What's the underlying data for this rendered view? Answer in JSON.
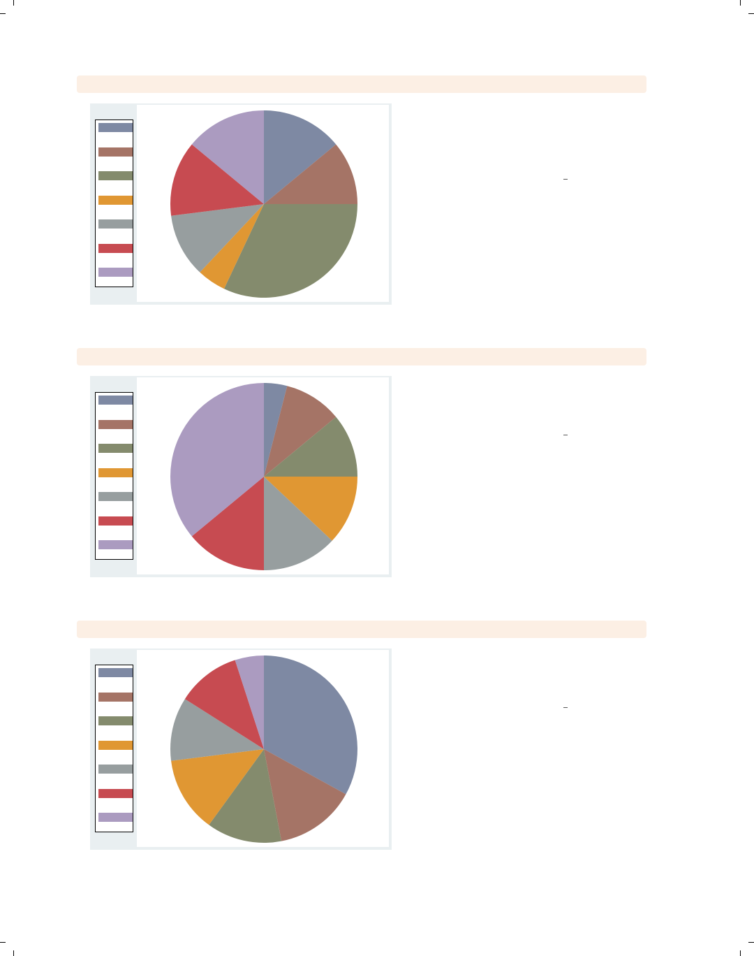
{
  "colors": {
    "series": [
      "#7e89a3",
      "#a57466",
      "#848b6d",
      "#e09733",
      "#979e9f",
      "#c74b51",
      "#ab9bc0"
    ],
    "section_bar": "#fcefe4",
    "panel_bg": "#e9eff1"
  },
  "chart_data": [
    {
      "type": "pie",
      "title": "",
      "slices": [
        {
          "name": "",
          "value": 14
        },
        {
          "name": "",
          "value": 11
        },
        {
          "name": "",
          "value": 32
        },
        {
          "name": "",
          "value": 5
        },
        {
          "name": "",
          "value": 11
        },
        {
          "name": "",
          "value": 13
        },
        {
          "name": "",
          "value": 14
        }
      ],
      "legend": "left"
    },
    {
      "type": "pie",
      "title": "",
      "slices": [
        {
          "name": "",
          "value": 4
        },
        {
          "name": "",
          "value": 10
        },
        {
          "name": "",
          "value": 11
        },
        {
          "name": "",
          "value": 12
        },
        {
          "name": "",
          "value": 13
        },
        {
          "name": "",
          "value": 14
        },
        {
          "name": "",
          "value": 36
        }
      ],
      "legend": "left"
    },
    {
      "type": "pie",
      "title": "",
      "slices": [
        {
          "name": "",
          "value": 33
        },
        {
          "name": "",
          "value": 14
        },
        {
          "name": "",
          "value": 13
        },
        {
          "name": "",
          "value": 13
        },
        {
          "name": "",
          "value": 11
        },
        {
          "name": "",
          "value": 11
        },
        {
          "name": "",
          "value": 5
        }
      ],
      "legend": "left"
    }
  ]
}
